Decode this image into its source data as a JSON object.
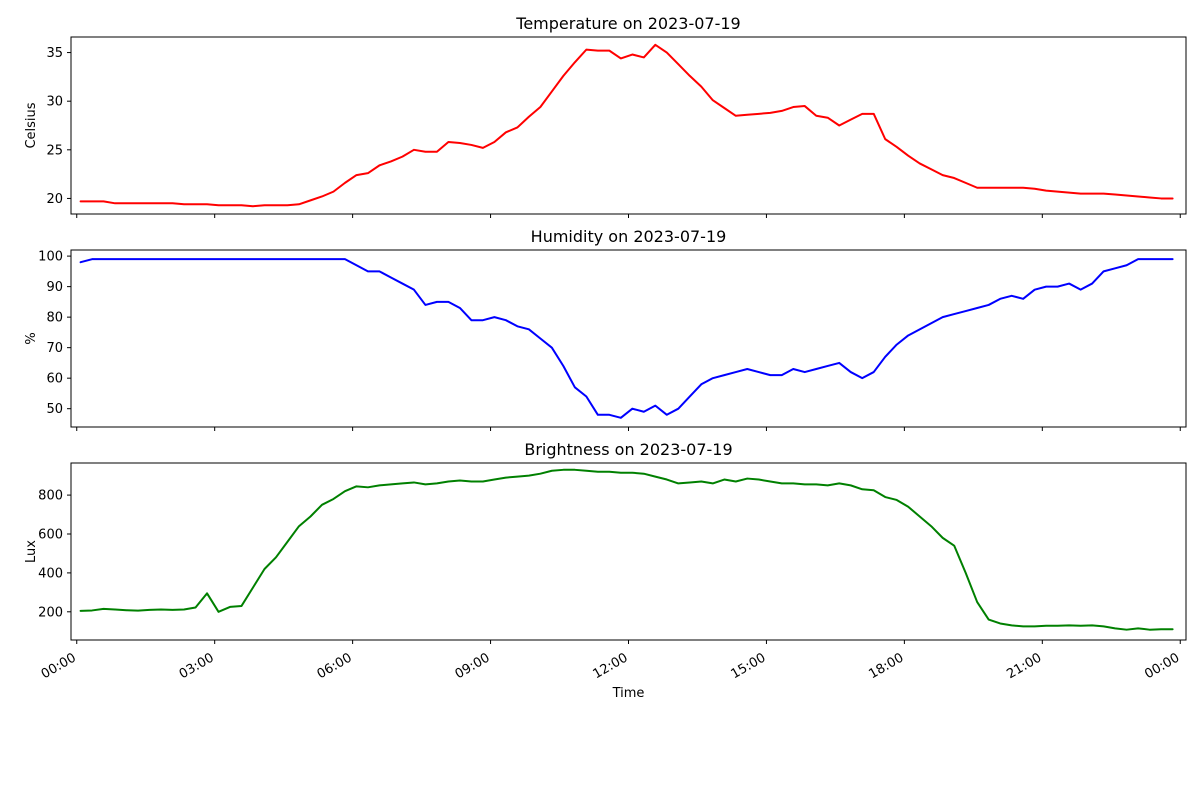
{
  "chart_data": [
    {
      "type": "line",
      "title": "Temperature on 2023-07-19",
      "xlabel": "",
      "ylabel": "Celsius",
      "ylim": [
        18.4,
        36.6
      ],
      "yticks": [
        20,
        25,
        30,
        35
      ],
      "grid": false,
      "series": [
        {
          "color": "#ff0000",
          "x": [
            "00:05",
            "00:20",
            "00:35",
            "00:50",
            "01:05",
            "01:20",
            "01:35",
            "01:50",
            "02:05",
            "02:20",
            "02:35",
            "02:50",
            "03:05",
            "03:20",
            "03:35",
            "03:50",
            "04:05",
            "04:20",
            "04:35",
            "04:50",
            "05:05",
            "05:20",
            "05:35",
            "05:50",
            "06:05",
            "06:20",
            "06:35",
            "06:50",
            "07:05",
            "07:20",
            "07:35",
            "07:50",
            "08:05",
            "08:20",
            "08:35",
            "08:50",
            "09:05",
            "09:20",
            "09:35",
            "09:50",
            "10:05",
            "10:20",
            "10:35",
            "10:50",
            "11:05",
            "11:20",
            "11:35",
            "11:50",
            "12:05",
            "12:20",
            "12:35",
            "12:50",
            "13:05",
            "13:20",
            "13:35",
            "13:50",
            "14:05",
            "14:20",
            "14:35",
            "14:50",
            "15:05",
            "15:20",
            "15:35",
            "15:50",
            "16:05",
            "16:20",
            "16:35",
            "16:50",
            "17:05",
            "17:20",
            "17:35",
            "17:50",
            "18:05",
            "18:20",
            "18:35",
            "18:50",
            "19:05",
            "19:20",
            "19:35",
            "19:50",
            "20:05",
            "20:20",
            "20:35",
            "20:50",
            "21:05",
            "21:20",
            "21:35",
            "21:50",
            "22:05",
            "22:20",
            "22:35",
            "22:50",
            "23:05",
            "23:20",
            "23:35",
            "23:50"
          ],
          "values": [
            19.7,
            19.7,
            19.7,
            19.5,
            19.5,
            19.5,
            19.5,
            19.5,
            19.5,
            19.4,
            19.4,
            19.4,
            19.3,
            19.3,
            19.3,
            19.2,
            19.3,
            19.3,
            19.3,
            19.4,
            19.8,
            20.2,
            20.7,
            21.6,
            22.4,
            22.6,
            23.4,
            23.8,
            24.3,
            25.0,
            24.8,
            24.8,
            25.8,
            25.7,
            25.5,
            25.2,
            25.8,
            26.8,
            27.3,
            28.4,
            29.4,
            31.0,
            32.6,
            34.0,
            35.3,
            35.2,
            35.2,
            34.4,
            34.8,
            34.5,
            35.8,
            35.0,
            33.8,
            32.6,
            31.5,
            30.1,
            29.3,
            28.5,
            28.6,
            28.7,
            28.8,
            29.0,
            29.4,
            29.5,
            28.5,
            28.3,
            27.5,
            28.1,
            28.7,
            28.7,
            26.1,
            25.3,
            24.4,
            23.6,
            23.0,
            22.4,
            22.1,
            21.6,
            21.1,
            21.1,
            21.1,
            21.1,
            21.1,
            21.0,
            20.8,
            20.7,
            20.6,
            20.5,
            20.5,
            20.5,
            20.4,
            20.3,
            20.2,
            20.1,
            20.0,
            20.0
          ]
        }
      ]
    },
    {
      "type": "line",
      "title": "Humidity on 2023-07-19",
      "xlabel": "",
      "ylabel": "%",
      "ylim": [
        44,
        102
      ],
      "yticks": [
        50,
        60,
        70,
        80,
        90,
        100
      ],
      "grid": false,
      "series": [
        {
          "color": "#0000ff",
          "x": [
            "00:05",
            "00:20",
            "00:35",
            "00:50",
            "01:05",
            "01:20",
            "01:35",
            "01:50",
            "02:05",
            "02:20",
            "02:35",
            "02:50",
            "03:05",
            "03:20",
            "03:35",
            "03:50",
            "04:05",
            "04:20",
            "04:35",
            "04:50",
            "05:05",
            "05:20",
            "05:35",
            "05:50",
            "06:05",
            "06:20",
            "06:35",
            "06:50",
            "07:05",
            "07:20",
            "07:35",
            "07:50",
            "08:05",
            "08:20",
            "08:35",
            "08:50",
            "09:05",
            "09:20",
            "09:35",
            "09:50",
            "10:05",
            "10:20",
            "10:35",
            "10:50",
            "11:05",
            "11:20",
            "11:35",
            "11:50",
            "12:05",
            "12:20",
            "12:35",
            "12:50",
            "13:05",
            "13:20",
            "13:35",
            "13:50",
            "14:05",
            "14:20",
            "14:35",
            "14:50",
            "15:05",
            "15:20",
            "15:35",
            "15:50",
            "16:05",
            "16:20",
            "16:35",
            "16:50",
            "17:05",
            "17:20",
            "17:35",
            "17:50",
            "18:05",
            "18:20",
            "18:35",
            "18:50",
            "19:05",
            "19:20",
            "19:35",
            "19:50",
            "20:05",
            "20:20",
            "20:35",
            "20:50",
            "21:05",
            "21:20",
            "21:35",
            "21:50",
            "22:05",
            "22:20",
            "22:35",
            "22:50",
            "23:05",
            "23:20",
            "23:35",
            "23:50"
          ],
          "values": [
            98,
            99,
            99,
            99,
            99,
            99,
            99,
            99,
            99,
            99,
            99,
            99,
            99,
            99,
            99,
            99,
            99,
            99,
            99,
            99,
            99,
            99,
            99,
            99,
            97,
            95,
            95,
            93,
            91,
            89,
            84,
            85,
            85,
            83,
            79,
            79,
            80,
            79,
            77,
            76,
            73,
            70,
            64,
            57,
            54,
            48,
            48,
            47,
            50,
            49,
            51,
            48,
            50,
            54,
            58,
            60,
            61,
            62,
            63,
            62,
            61,
            61,
            63,
            62,
            63,
            64,
            65,
            62,
            60,
            62,
            67,
            71,
            74,
            76,
            78,
            80,
            81,
            82,
            83,
            84,
            86,
            87,
            86,
            89,
            90,
            90,
            91,
            89,
            91,
            95,
            96,
            97,
            99,
            99,
            99,
            99
          ]
        }
      ]
    },
    {
      "type": "line",
      "title": "Brightness on 2023-07-19",
      "xlabel": "Time",
      "ylabel": "Lux",
      "ylim": [
        55,
        965
      ],
      "yticks": [
        200,
        400,
        600,
        800
      ],
      "grid": false,
      "xticks": [
        "00:00",
        "03:00",
        "06:00",
        "09:00",
        "12:00",
        "15:00",
        "18:00",
        "21:00",
        "00:00"
      ],
      "series": [
        {
          "color": "#008000",
          "x": [
            "00:05",
            "00:20",
            "00:35",
            "00:50",
            "01:05",
            "01:20",
            "01:35",
            "01:50",
            "02:05",
            "02:20",
            "02:35",
            "02:50",
            "03:05",
            "03:20",
            "03:35",
            "03:50",
            "04:05",
            "04:20",
            "04:35",
            "04:50",
            "05:05",
            "05:20",
            "05:35",
            "05:50",
            "06:05",
            "06:20",
            "06:35",
            "06:50",
            "07:05",
            "07:20",
            "07:35",
            "07:50",
            "08:05",
            "08:20",
            "08:35",
            "08:50",
            "09:05",
            "09:20",
            "09:35",
            "09:50",
            "10:05",
            "10:20",
            "10:35",
            "10:50",
            "11:05",
            "11:20",
            "11:35",
            "11:50",
            "12:05",
            "12:20",
            "12:35",
            "12:50",
            "13:05",
            "13:20",
            "13:35",
            "13:50",
            "14:05",
            "14:20",
            "14:35",
            "14:50",
            "15:05",
            "15:20",
            "15:35",
            "15:50",
            "16:05",
            "16:20",
            "16:35",
            "16:50",
            "17:05",
            "17:20",
            "17:35",
            "17:50",
            "18:05",
            "18:20",
            "18:35",
            "18:50",
            "19:05",
            "19:20",
            "19:35",
            "19:50",
            "20:05",
            "20:20",
            "20:35",
            "20:50",
            "21:05",
            "21:20",
            "21:35",
            "21:50",
            "22:05",
            "22:20",
            "22:35",
            "22:50",
            "23:05",
            "23:20",
            "23:35",
            "23:50"
          ],
          "values": [
            205,
            207,
            215,
            212,
            208,
            206,
            210,
            212,
            210,
            212,
            222,
            295,
            200,
            225,
            230,
            325,
            420,
            480,
            560,
            640,
            690,
            750,
            780,
            820,
            845,
            840,
            850,
            855,
            860,
            865,
            855,
            860,
            870,
            875,
            870,
            870,
            880,
            890,
            895,
            900,
            910,
            925,
            930,
            930,
            925,
            920,
            920,
            915,
            915,
            910,
            895,
            880,
            860,
            865,
            870,
            860,
            880,
            870,
            885,
            880,
            870,
            860,
            860,
            855,
            855,
            850,
            860,
            850,
            830,
            825,
            790,
            775,
            740,
            690,
            640,
            580,
            540,
            400,
            250,
            160,
            140,
            130,
            125,
            125,
            128,
            128,
            130,
            128,
            130,
            125,
            115,
            108,
            115,
            108,
            110,
            110
          ]
        }
      ]
    }
  ]
}
